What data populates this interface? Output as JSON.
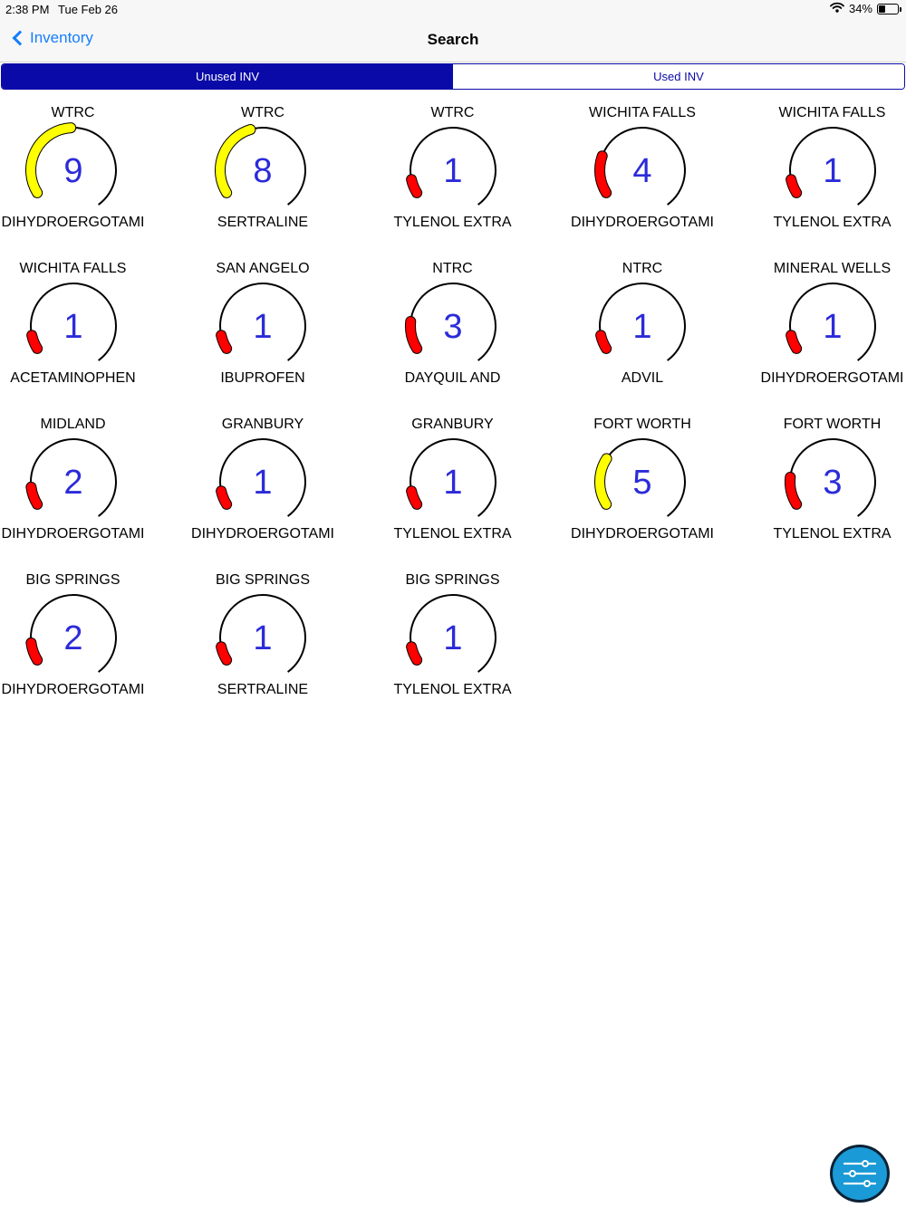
{
  "status_bar": {
    "time": "2:38 PM",
    "date": "Tue Feb 26",
    "battery": "34%",
    "battery_level": 0.34,
    "wifi_icon": "wifi-icon",
    "battery_icon": "battery-icon"
  },
  "nav": {
    "back_label": "Inventory",
    "title": "Search",
    "back_icon": "chevron-left-icon"
  },
  "segments": [
    {
      "label": "Unused INV",
      "selected": true
    },
    {
      "label": "Used INV",
      "selected": false
    }
  ],
  "gauge_max": 10,
  "colors": {
    "accent": "#157efb",
    "segment": "#0a0aa8",
    "value_text": "#2b2bd9",
    "low": "#ff0000",
    "mid": "#ffff00",
    "fab": "#1a9ad6"
  },
  "items": [
    {
      "location": "WTRC",
      "count": "9",
      "drug": "DIHYDROERGOTAMI",
      "level": 9,
      "color": "#ffff00"
    },
    {
      "location": "WTRC",
      "count": "8",
      "drug": "SERTRALINE",
      "level": 8,
      "color": "#ffff00"
    },
    {
      "location": "WTRC",
      "count": "1",
      "drug": "TYLENOL EXTRA",
      "level": 1,
      "color": "#ff0000"
    },
    {
      "location": "WICHITA FALLS",
      "count": "4",
      "drug": "DIHYDROERGOTAMI",
      "level": 4,
      "color": "#ff0000"
    },
    {
      "location": "WICHITA FALLS",
      "count": "1",
      "drug": "TYLENOL EXTRA",
      "level": 1,
      "color": "#ff0000"
    },
    {
      "location": "WICHITA FALLS",
      "count": "1",
      "drug": "ACETAMINOPHEN",
      "level": 1,
      "color": "#ff0000"
    },
    {
      "location": "SAN ANGELO",
      "count": "1",
      "drug": "IBUPROFEN",
      "level": 1,
      "color": "#ff0000"
    },
    {
      "location": "NTRC",
      "count": "3",
      "drug": "DAYQUIL AND",
      "level": 3,
      "color": "#ff0000"
    },
    {
      "location": "NTRC",
      "count": "1",
      "drug": "ADVIL",
      "level": 1,
      "color": "#ff0000"
    },
    {
      "location": "MINERAL WELLS",
      "count": "1",
      "drug": "DIHYDROERGOTAMI",
      "level": 1,
      "color": "#ff0000"
    },
    {
      "location": "MIDLAND",
      "count": "2",
      "drug": "DIHYDROERGOTAMI",
      "level": 2,
      "color": "#ff0000"
    },
    {
      "location": "GRANBURY",
      "count": "1",
      "drug": "DIHYDROERGOTAMI",
      "level": 1,
      "color": "#ff0000"
    },
    {
      "location": "GRANBURY",
      "count": "1",
      "drug": "TYLENOL EXTRA",
      "level": 1,
      "color": "#ff0000"
    },
    {
      "location": "FORT WORTH",
      "count": "5",
      "drug": "DIHYDROERGOTAMI",
      "level": 5,
      "color": "#ffff00"
    },
    {
      "location": "FORT WORTH",
      "count": "3",
      "drug": "TYLENOL EXTRA",
      "level": 3,
      "color": "#ff0000"
    },
    {
      "location": "BIG SPRINGS",
      "count": "2",
      "drug": "DIHYDROERGOTAMI",
      "level": 2,
      "color": "#ff0000"
    },
    {
      "location": "BIG SPRINGS",
      "count": "1",
      "drug": "SERTRALINE",
      "level": 1,
      "color": "#ff0000"
    },
    {
      "location": "BIG SPRINGS",
      "count": "1",
      "drug": "TYLENOL EXTRA",
      "level": 1,
      "color": "#ff0000"
    }
  ],
  "fab": {
    "icon": "sliders-icon"
  }
}
